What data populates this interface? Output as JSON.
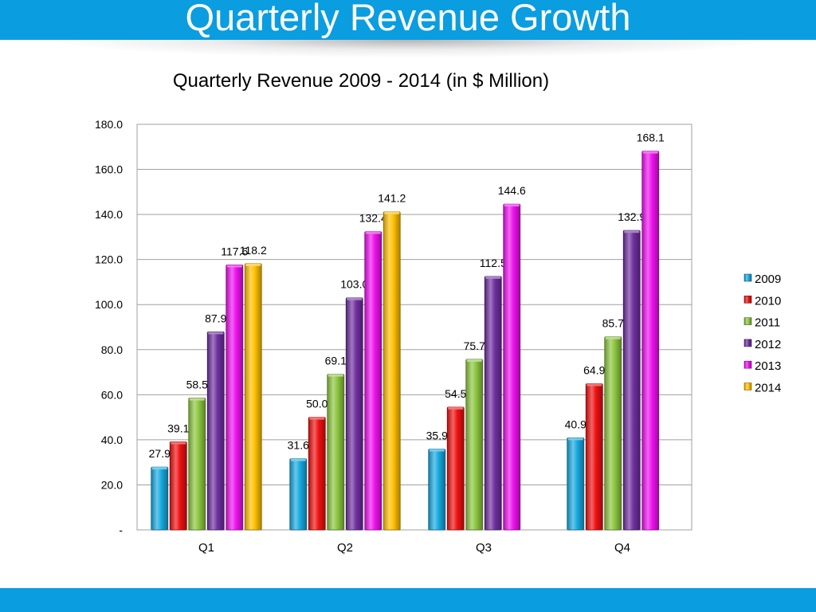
{
  "slide": {
    "title": "Quarterly Revenue Growth"
  },
  "colors": {
    "banner": "#0a9de0"
  },
  "chart_data": {
    "type": "bar",
    "title": "Quarterly Revenue 2009 - 2014 (in $ Million)",
    "xlabel": "",
    "ylabel": "",
    "categories": [
      "Q1",
      "Q2",
      "Q3",
      "Q4"
    ],
    "ylim": [
      0,
      180
    ],
    "yticks": [
      0,
      20,
      40,
      60,
      80,
      100,
      120,
      140,
      160,
      180
    ],
    "ytick_labels": [
      "-",
      "20.0",
      "40.0",
      "60.0",
      "80.0",
      "100.0",
      "120.0",
      "140.0",
      "160.0",
      "180.0"
    ],
    "grid": true,
    "legend_position": "right",
    "series": [
      {
        "name": "2009",
        "color": "#17a9e0",
        "values": [
          27.9,
          31.6,
          35.9,
          40.9
        ],
        "labels": [
          "27.9",
          "31.6",
          "35.9",
          "40.9"
        ]
      },
      {
        "name": "2010",
        "color": "#ee1111",
        "values": [
          39.1,
          50.0,
          54.5,
          64.9
        ],
        "labels": [
          "39.1",
          "50.0",
          "54.5",
          "64.9"
        ]
      },
      {
        "name": "2011",
        "color": "#8cc63f",
        "values": [
          58.5,
          69.1,
          75.7,
          85.7
        ],
        "labels": [
          "58.5",
          "69.1",
          "75.7",
          "85.7"
        ]
      },
      {
        "name": "2012",
        "color": "#7030a0",
        "values": [
          87.9,
          103.0,
          112.5,
          132.9
        ],
        "labels": [
          "87.9",
          "103.0",
          "112.5",
          "132.9"
        ]
      },
      {
        "name": "2013",
        "color": "#ee11ee",
        "values": [
          117.6,
          132.4,
          144.6,
          168.1
        ],
        "labels": [
          "117.6",
          "132.4",
          "144.6",
          "168.1"
        ]
      },
      {
        "name": "2014",
        "color": "#ffc000",
        "values": [
          118.2,
          141.2,
          null,
          null
        ],
        "labels": [
          "118.2",
          "141.2",
          null,
          null
        ]
      }
    ]
  }
}
